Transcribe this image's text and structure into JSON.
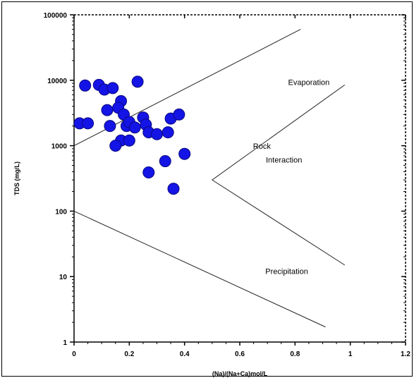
{
  "chart_data": {
    "type": "scatter",
    "title": "",
    "xlabel": "(Na)/(Na+Ca)mol/L",
    "ylabel": "TDS (mg/L)",
    "xlim": [
      0,
      1.2
    ],
    "ylim": [
      1,
      100000
    ],
    "yscale": "log",
    "x_ticks": [
      0,
      0.2,
      0.4,
      0.6,
      0.8,
      1,
      1.2
    ],
    "x_tick_labels": [
      "0",
      "0.2",
      "0.4",
      "0.6",
      "0.8",
      "1",
      "1.2"
    ],
    "y_ticks": [
      1,
      10,
      100,
      1000,
      10000,
      100000
    ],
    "y_tick_labels": [
      "1",
      "10",
      "100",
      "1000",
      "10000",
      "100000"
    ],
    "marker_color": "#1414e6",
    "points": [
      {
        "x": 0.02,
        "y": 2200
      },
      {
        "x": 0.05,
        "y": 2200
      },
      {
        "x": 0.04,
        "y": 8300
      },
      {
        "x": 0.09,
        "y": 8500
      },
      {
        "x": 0.11,
        "y": 7200
      },
      {
        "x": 0.14,
        "y": 7600
      },
      {
        "x": 0.23,
        "y": 9500
      },
      {
        "x": 0.12,
        "y": 3500
      },
      {
        "x": 0.17,
        "y": 4800
      },
      {
        "x": 0.16,
        "y": 3800
      },
      {
        "x": 0.18,
        "y": 3000
      },
      {
        "x": 0.13,
        "y": 2000
      },
      {
        "x": 0.19,
        "y": 2000
      },
      {
        "x": 0.2,
        "y": 2300
      },
      {
        "x": 0.22,
        "y": 1900
      },
      {
        "x": 0.25,
        "y": 2700
      },
      {
        "x": 0.26,
        "y": 2100
      },
      {
        "x": 0.27,
        "y": 1600
      },
      {
        "x": 0.3,
        "y": 1500
      },
      {
        "x": 0.34,
        "y": 1600
      },
      {
        "x": 0.35,
        "y": 2600
      },
      {
        "x": 0.38,
        "y": 3000
      },
      {
        "x": 0.17,
        "y": 1200
      },
      {
        "x": 0.2,
        "y": 1200
      },
      {
        "x": 0.15,
        "y": 1000
      },
      {
        "x": 0.4,
        "y": 750
      },
      {
        "x": 0.33,
        "y": 580
      },
      {
        "x": 0.27,
        "y": 390
      },
      {
        "x": 0.36,
        "y": 220
      }
    ],
    "boundary_lines": [
      {
        "name": "upper",
        "points": [
          [
            0,
            1000
          ],
          [
            0.82,
            60000
          ]
        ]
      },
      {
        "name": "rock",
        "points": [
          [
            0.98,
            8500
          ],
          [
            0.5,
            300
          ],
          [
            0.98,
            15
          ]
        ]
      },
      {
        "name": "lower",
        "points": [
          [
            0,
            100
          ],
          [
            0.91,
            1.7
          ]
        ]
      }
    ],
    "annotations": [
      {
        "text": "Evaporation",
        "x": 0.85,
        "y": 8500
      },
      {
        "text": "Rock",
        "x": 0.68,
        "y": 900
      },
      {
        "text": "Interaction",
        "x": 0.76,
        "y": 550
      },
      {
        "text": "Precipitation",
        "x": 0.77,
        "y": 11
      }
    ]
  }
}
